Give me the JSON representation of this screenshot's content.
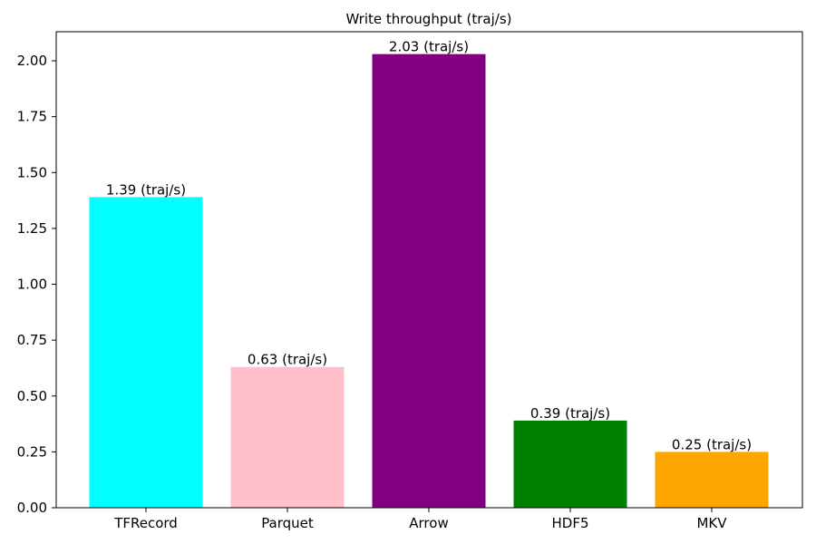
{
  "chart_data": {
    "type": "bar",
    "title": "Write throughput (traj/s)",
    "xlabel": "",
    "ylabel": "",
    "categories": [
      "TFRecord",
      "Parquet",
      "Arrow",
      "HDF5",
      "MKV"
    ],
    "values": [
      1.39,
      0.63,
      2.03,
      0.39,
      0.25
    ],
    "data_labels": [
      "1.39 (traj/s)",
      "0.63 (traj/s)",
      "2.03 (traj/s)",
      "0.39 (traj/s)",
      "0.25 (traj/s)"
    ],
    "colors": [
      "#00ffff",
      "#ffc0cb",
      "#800080",
      "#008000",
      "#ffa500"
    ],
    "ylim": [
      0,
      2.13
    ],
    "yticks": [
      0,
      0.25,
      0.5,
      0.75,
      1.0,
      1.25,
      1.5,
      1.75,
      2.0
    ],
    "ytick_labels": [
      "0.00",
      "0.25",
      "0.50",
      "0.75",
      "1.00",
      "1.25",
      "1.50",
      "1.75",
      "2.00"
    ],
    "grid": false,
    "legend": "none"
  }
}
